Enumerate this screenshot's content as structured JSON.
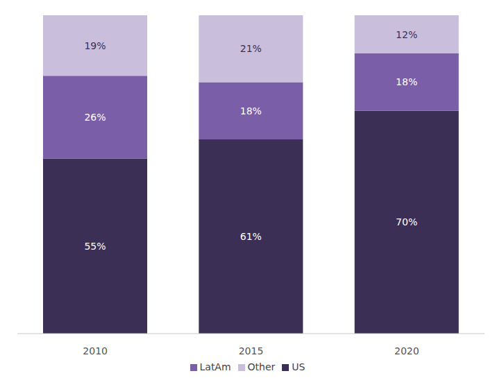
{
  "chart_data": {
    "type": "bar",
    "stacked": true,
    "data_labels": true,
    "tick_labels": "x",
    "legend": "bottom",
    "categories": [
      "2010",
      "2015",
      "2020"
    ],
    "ylim": [
      0,
      100
    ],
    "series": [
      {
        "name": "US",
        "color": "#3b2f55",
        "values": [
          55,
          61,
          70
        ],
        "value_labels": [
          "55%",
          "61%",
          "70%"
        ]
      },
      {
        "name": "LatAm",
        "color": "#7a5ea8",
        "values": [
          26,
          18,
          18
        ],
        "value_labels": [
          "26%",
          "18%",
          "18%"
        ]
      },
      {
        "name": "Other",
        "color": "#c9bfdd",
        "values": [
          19,
          21,
          12
        ],
        "value_labels": [
          "19%",
          "21%",
          "12%"
        ]
      }
    ]
  }
}
